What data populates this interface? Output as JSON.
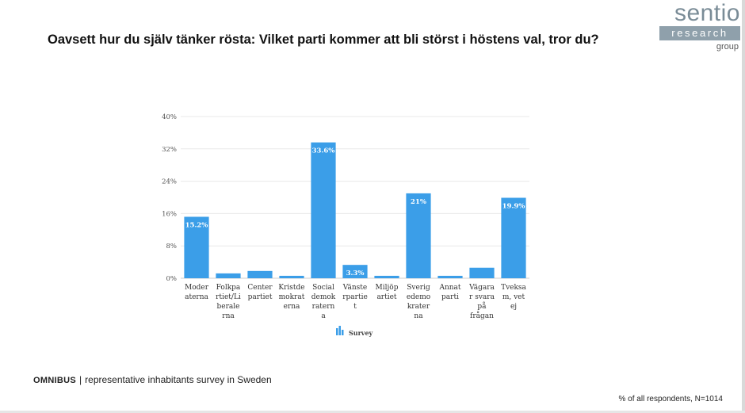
{
  "title": "Oavsett hur du själv tänker rösta: Vilket parti kommer att bli störst i höstens val, tror du?",
  "logo": {
    "word": "sentio",
    "band": "research",
    "sub": "group"
  },
  "footer": {
    "brand": "OMNIBUS",
    "separator": "|",
    "description": "representative inhabitants survey in Sweden",
    "note": "% of all respondents, N=1014"
  },
  "colors": {
    "bar": "#3b9ee8",
    "grid": "#e8e8e8",
    "tick": "#555555",
    "label": "#333333"
  },
  "chart_data": {
    "type": "bar",
    "title": "",
    "xlabel": "",
    "ylabel": "",
    "ylim": [
      0,
      40
    ],
    "yticks": [
      0,
      8,
      16,
      24,
      32,
      40
    ],
    "ytick_labels": [
      "0%",
      "8%",
      "16%",
      "24%",
      "32%",
      "40%"
    ],
    "categories": [
      [
        "Moder",
        "aterna"
      ],
      [
        "Folkpa",
        "rtiet/Li",
        "berale",
        "rna"
      ],
      [
        "Center",
        "partiet"
      ],
      [
        "Kristde",
        "mokrat",
        "erna"
      ],
      [
        "Social",
        "demok",
        "ratern",
        "a"
      ],
      [
        "Vänste",
        "rpartie",
        "t"
      ],
      [
        "Miljöp",
        "artiet"
      ],
      [
        "Sverig",
        "edemo",
        "krater",
        "na"
      ],
      [
        "Annat",
        "parti"
      ],
      [
        "Vägara",
        "r svara",
        "på",
        "frågan"
      ],
      [
        "Tveksa",
        "m, vet",
        "ej"
      ]
    ],
    "series": [
      {
        "name": "Survey",
        "values": [
          15.2,
          1.2,
          1.8,
          0.6,
          33.6,
          3.3,
          0.6,
          21,
          0.6,
          2.6,
          19.9
        ],
        "data_labels": [
          "15.2%",
          null,
          null,
          null,
          "33.6%",
          "3.3%",
          null,
          "21%",
          null,
          null,
          "19.9%"
        ]
      }
    ],
    "legend": {
      "position": "bottom",
      "label": "Survey"
    }
  }
}
